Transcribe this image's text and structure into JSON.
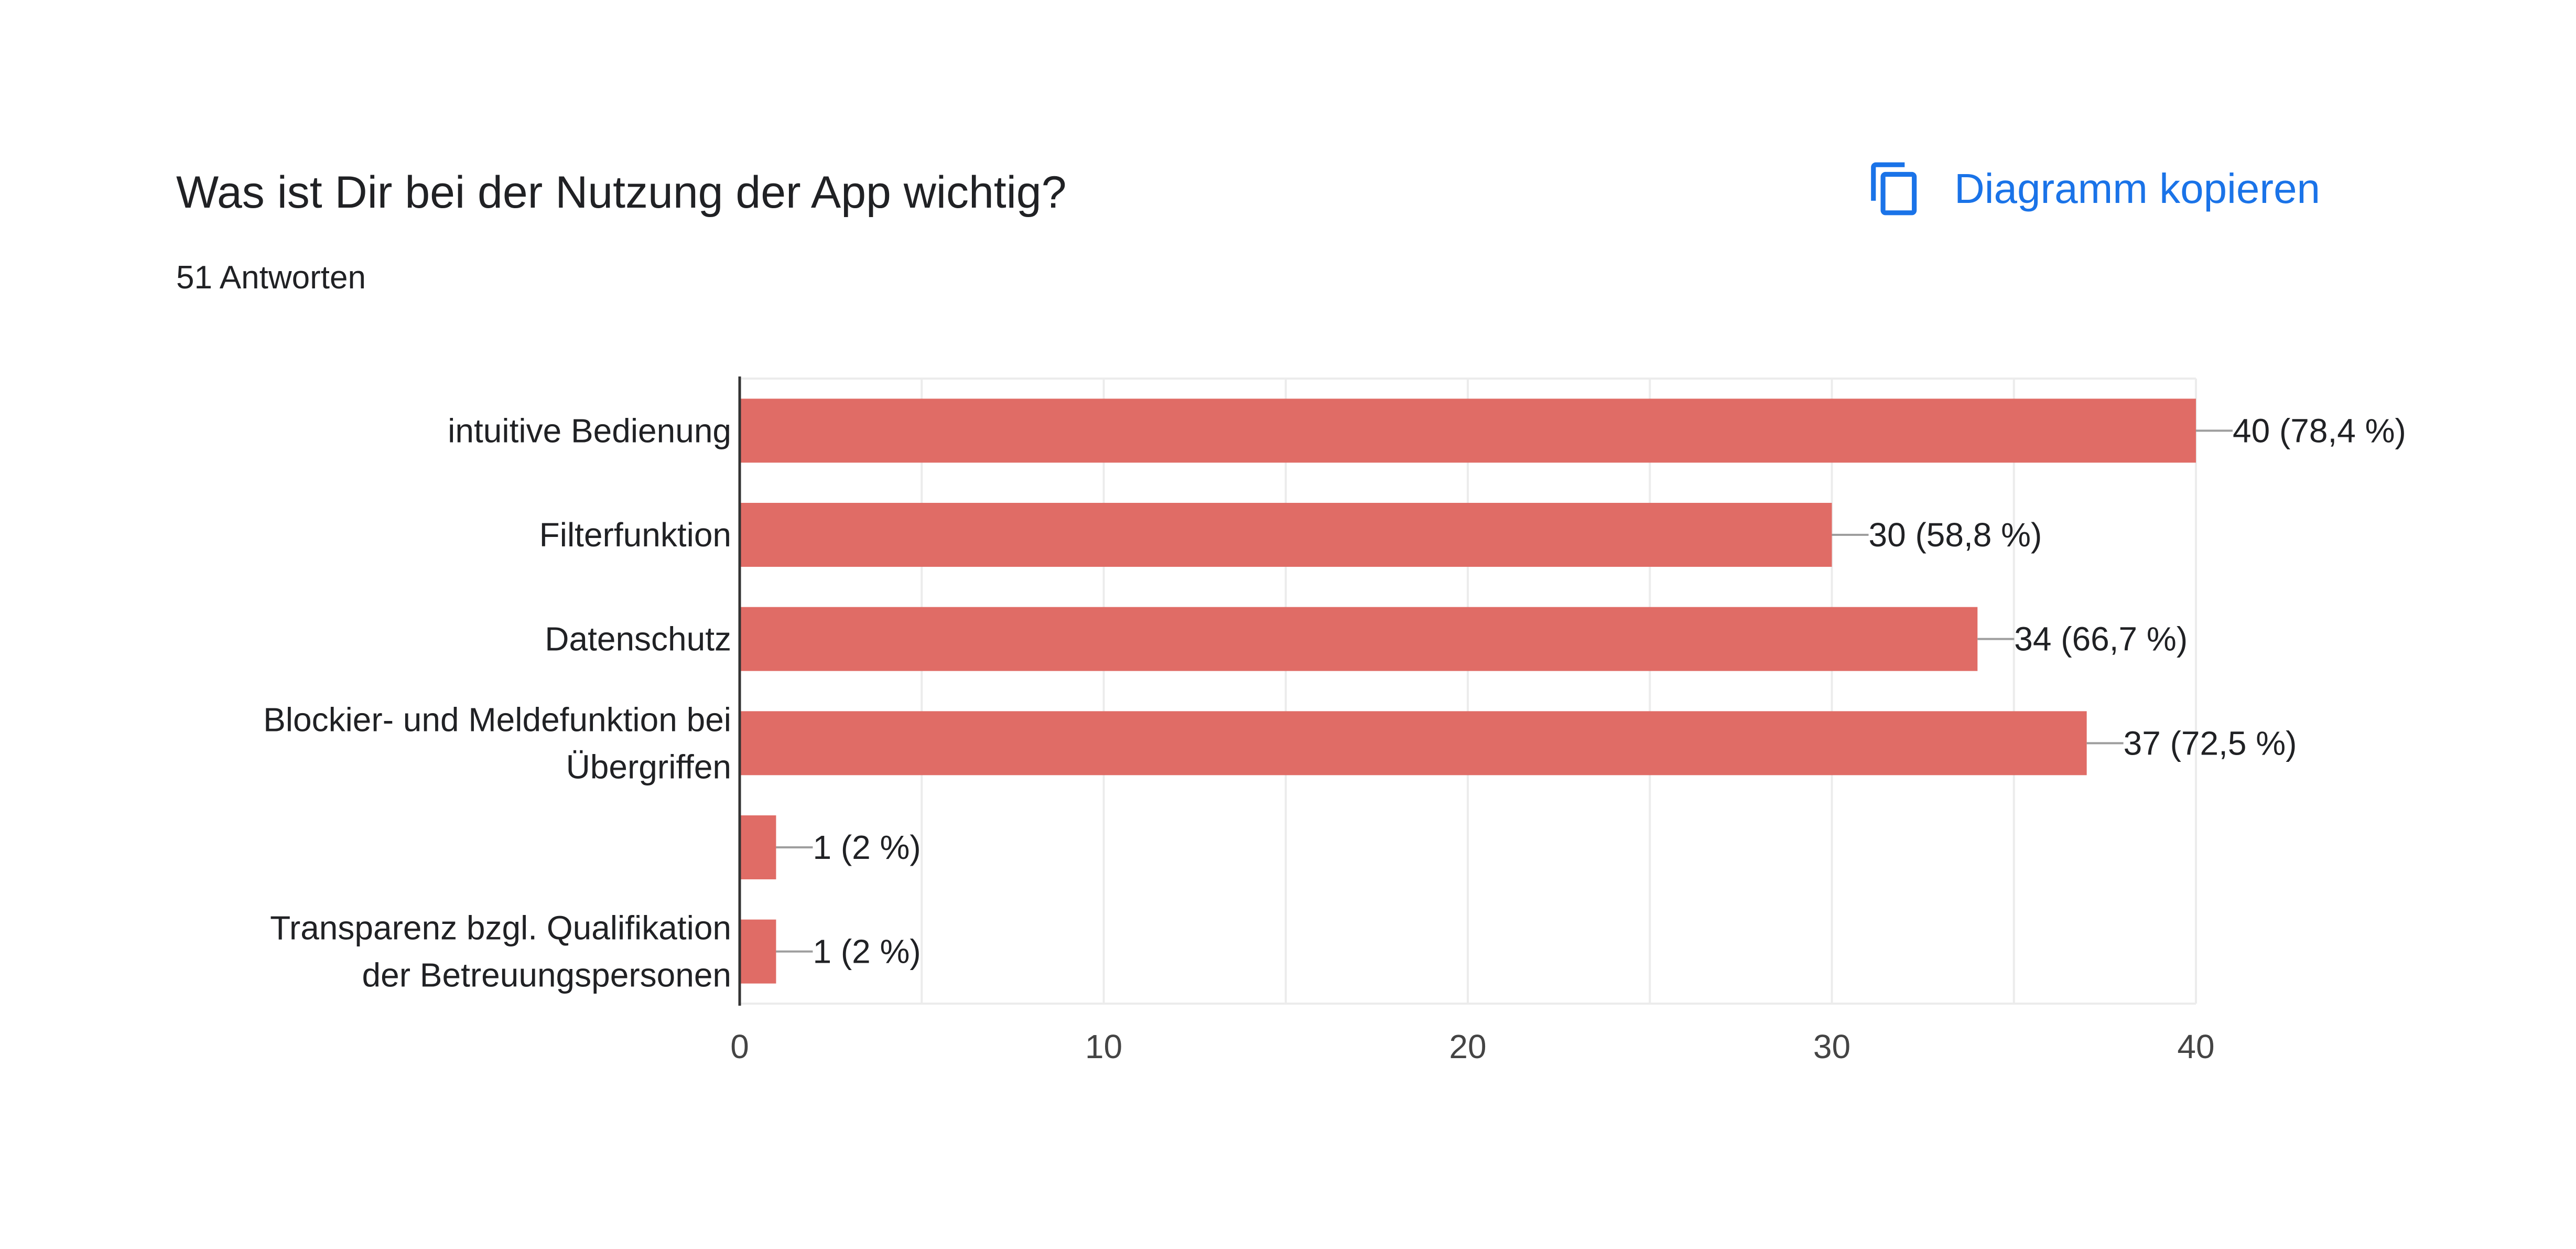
{
  "header": {
    "title": "Was ist Dir bei der Nutzung der App wichtig?",
    "response_count": "51 Antworten",
    "copy_label": "Diagramm kopieren",
    "copy_icon": "copy-icon",
    "accent_color": "#1a73e8"
  },
  "chart_data": {
    "type": "bar",
    "orientation": "horizontal",
    "categories": [
      [
        "intuitive Bedienung"
      ],
      [
        "Filterfunktion"
      ],
      [
        "Datenschutz"
      ],
      [
        "Blockier- und Meldefunktion bei",
        "Übergriffen"
      ],
      [
        ""
      ],
      [
        "Transparenz bzgl. Qualifikation",
        "der Betreuungspersonen"
      ]
    ],
    "values": [
      40,
      30,
      34,
      37,
      1,
      1
    ],
    "data_labels": [
      "40 (78,4 %)",
      "30 (58,8 %)",
      "34 (66,7 %)",
      "37 (72,5 %)",
      "1 (2 %)",
      "1 (2 %)"
    ],
    "xlim": [
      0,
      40
    ],
    "xticks": [
      0,
      10,
      20,
      30,
      40
    ],
    "tick_labels": [
      "0",
      "10",
      "20",
      "30",
      "40"
    ],
    "bar_color": "#e06c66",
    "grid": true
  }
}
